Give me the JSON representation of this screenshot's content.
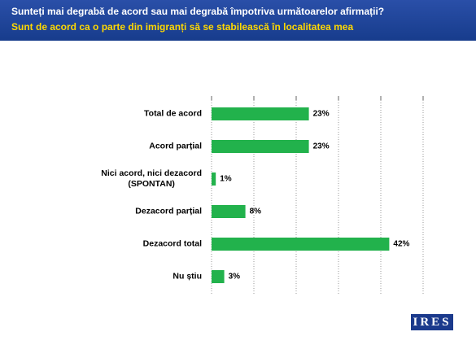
{
  "chart_data": {
    "type": "bar",
    "orientation": "horizontal",
    "title": "Sunteți mai degrabă de acord sau mai degrabă împotriva următoarelor afirmații?",
    "subtitle": "Sunt de acord ca o parte din imigranți să se stabilească în localitatea mea",
    "categories": [
      "Total de acord",
      "Acord parțial",
      "Nici acord, nici dezacord\n(SPONTAN)",
      "Dezacord parțial",
      "Dezacord total",
      "Nu știu"
    ],
    "values": [
      23,
      23,
      1,
      8,
      42,
      3
    ],
    "value_labels": [
      "23%",
      "23%",
      "1%",
      "8%",
      "42%",
      "3%"
    ],
    "color": "#22b24c",
    "xlim": [
      0,
      50
    ],
    "xticks": [
      0,
      10,
      20,
      30,
      40,
      50
    ],
    "grid": true
  },
  "logo": "IRES"
}
